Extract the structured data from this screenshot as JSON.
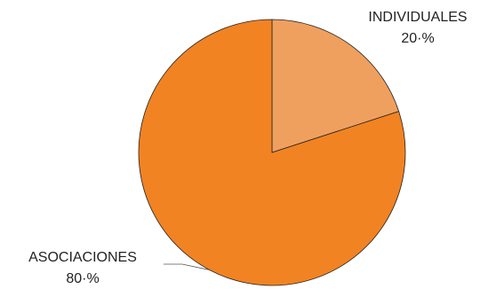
{
  "chart_data": {
    "type": "pie",
    "slices": [
      {
        "label": "INDIVIDUALES",
        "value": 20,
        "value_label": "20·%",
        "color": "#F0A05E"
      },
      {
        "label": "ASOCIACIONES",
        "value": 80,
        "value_label": "80·%",
        "color": "#F28322"
      }
    ],
    "stroke_color": "#222222",
    "leader_color": "#555555",
    "legend": "none"
  }
}
